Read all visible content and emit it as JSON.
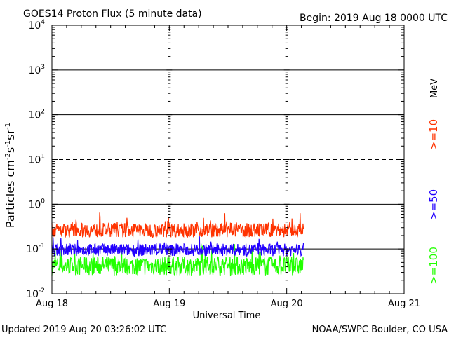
{
  "chart_data": {
    "type": "line",
    "title": "GOES14 Proton Flux (5 minute data)",
    "begin_label": "Begin: 2019 Aug 18 0000 UTC",
    "xlabel": "Universal Time",
    "ylabel_text": "Particles cm",
    "ylabel_sup1": "-2",
    "ylabel_mid1": "s",
    "ylabel_sup2": "-1",
    "ylabel_mid2": "sr",
    "ylabel_sup3": "-1",
    "yscale": "log",
    "ylim": [
      0.01,
      10000
    ],
    "xlim_hours": [
      0,
      72
    ],
    "data_end_hours": 51.5,
    "x_ticks": [
      {
        "hour": 0,
        "label": "Aug 18"
      },
      {
        "hour": 24,
        "label": "Aug 19"
      },
      {
        "hour": 48,
        "label": "Aug 20"
      },
      {
        "hour": 72,
        "label": "Aug 21"
      }
    ],
    "y_ticks": [
      {
        "exp": -2,
        "base": "10",
        "sup": "-2"
      },
      {
        "exp": -1,
        "base": "10",
        "sup": "-1"
      },
      {
        "exp": 0,
        "base": "10",
        "sup": "0"
      },
      {
        "exp": 1,
        "base": "10",
        "sup": "1"
      },
      {
        "exp": 2,
        "base": "10",
        "sup": "2"
      },
      {
        "exp": 3,
        "base": "10",
        "sup": "3"
      },
      {
        "exp": 4,
        "base": "10",
        "sup": "4"
      }
    ],
    "reference_lines": [
      {
        "value": 10,
        "style": "dashed"
      },
      {
        "value": 0.1,
        "style": "solid"
      },
      {
        "value": 1,
        "style": "solid"
      },
      {
        "value": 100,
        "style": "solid"
      },
      {
        "value": 1000,
        "style": "solid"
      }
    ],
    "series": [
      {
        "name": ">=10",
        "color": "#ff3300",
        "base_log10": -0.58,
        "spread": 0.32,
        "spike": 0.18
      },
      {
        "name": ">=50",
        "color": "#2200ff",
        "base_log10": -1.02,
        "spread": 0.28,
        "spike": 0.12
      },
      {
        "name": ">=100",
        "color": "#22ff00",
        "base_log10": -1.38,
        "spread": 0.42,
        "spike": 0.22
      }
    ],
    "legend_unit": "MeV"
  },
  "footer": {
    "updated": "Updated 2019 Aug 20 03:26:02 UTC",
    "source": "NOAA/SWPC Boulder, CO USA"
  }
}
